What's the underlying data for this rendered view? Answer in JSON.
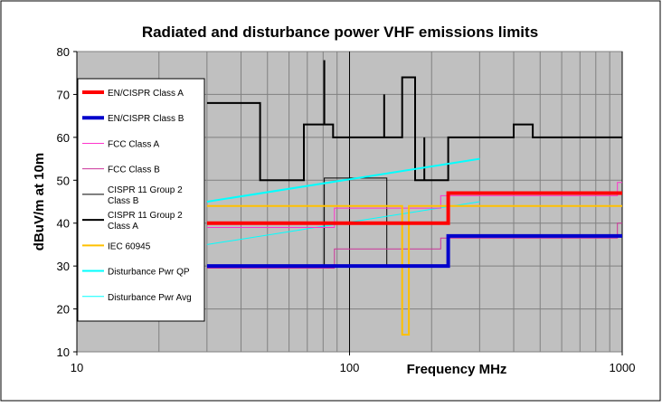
{
  "chart_data": {
    "type": "line",
    "title": "Radiated and disturbance power VHF emissions limits",
    "xlabel": "Frequency MHz",
    "ylabel": "dBuV/m at 10m",
    "xscale": "log",
    "xlim": [
      10,
      1000
    ],
    "ylim": [
      10,
      80
    ],
    "x_ticks": [
      10,
      100,
      1000
    ],
    "x_tick_labels": [
      "10",
      "100",
      "1000"
    ],
    "y_ticks": [
      10,
      20,
      30,
      40,
      50,
      60,
      70,
      80
    ],
    "y_tick_labels": [
      "10",
      "20",
      "30",
      "40",
      "50",
      "60",
      "70",
      "80"
    ],
    "grid": true,
    "legend_position": "left",
    "series": [
      {
        "name": "EN/CISPR Class A",
        "color": "#ff0000",
        "width": 4,
        "points": [
          [
            30,
            40
          ],
          [
            230,
            40
          ],
          [
            230,
            47
          ],
          [
            1000,
            47
          ]
        ]
      },
      {
        "name": "EN/CISPR Class B",
        "color": "#0000cc",
        "width": 4,
        "points": [
          [
            30,
            30
          ],
          [
            230,
            30
          ],
          [
            230,
            37
          ],
          [
            1000,
            37
          ]
        ]
      },
      {
        "name": "FCC Class A",
        "color": "#ff33cc",
        "width": 1,
        "points": [
          [
            30,
            39
          ],
          [
            88,
            39
          ],
          [
            88,
            43.5
          ],
          [
            216,
            43.5
          ],
          [
            216,
            46.4
          ],
          [
            960,
            46.4
          ],
          [
            960,
            49.5
          ],
          [
            1000,
            49.5
          ]
        ]
      },
      {
        "name": "FCC Class B",
        "color": "#cc3399",
        "width": 1,
        "points": [
          [
            30,
            29.5
          ],
          [
            88,
            29.5
          ],
          [
            88,
            34
          ],
          [
            216,
            34
          ],
          [
            216,
            36.5
          ],
          [
            960,
            36.5
          ],
          [
            960,
            40
          ],
          [
            1000,
            40
          ]
        ]
      },
      {
        "name": "CISPR 11 Group 2 Class B",
        "color": "#000000",
        "width": 1,
        "points": [
          [
            80.8,
            30
          ],
          [
            80.8,
            50.5
          ],
          [
            137,
            50.5
          ],
          [
            137,
            30
          ]
        ]
      },
      {
        "name": "CISPR 11 Group 2 Class A",
        "color": "#000000",
        "width": 2,
        "points": [
          [
            30,
            68
          ],
          [
            47,
            68
          ],
          [
            47,
            50
          ],
          [
            68,
            50
          ],
          [
            68,
            63
          ],
          [
            80.8,
            63
          ],
          [
            80.8,
            78
          ],
          [
            80.8,
            63
          ],
          [
            87,
            63
          ],
          [
            87,
            60
          ],
          [
            134,
            60
          ],
          [
            134,
            70
          ],
          [
            134,
            60
          ],
          [
            156,
            60
          ],
          [
            156,
            74
          ],
          [
            174,
            74
          ],
          [
            174,
            50
          ],
          [
            188,
            50
          ],
          [
            188,
            60
          ],
          [
            188,
            50
          ],
          [
            230,
            50
          ],
          [
            230,
            60
          ],
          [
            400,
            60
          ],
          [
            400,
            63
          ],
          [
            470,
            63
          ],
          [
            470,
            60
          ],
          [
            1000,
            60
          ]
        ]
      },
      {
        "name": "IEC 60945",
        "color": "#ffc000",
        "width": 2,
        "points": [
          [
            30,
            44
          ],
          [
            156,
            44
          ],
          [
            156,
            14
          ],
          [
            165,
            14
          ],
          [
            165,
            44
          ],
          [
            1000,
            44
          ]
        ]
      },
      {
        "name": "Disturbance Pwr QP",
        "color": "#00ffff",
        "width": 2,
        "points": [
          [
            30,
            45
          ],
          [
            300,
            55
          ]
        ]
      },
      {
        "name": "Disturbance Pwr Avg",
        "color": "#00ffff",
        "width": 1,
        "points": [
          [
            30,
            35
          ],
          [
            300,
            45
          ]
        ]
      }
    ]
  }
}
